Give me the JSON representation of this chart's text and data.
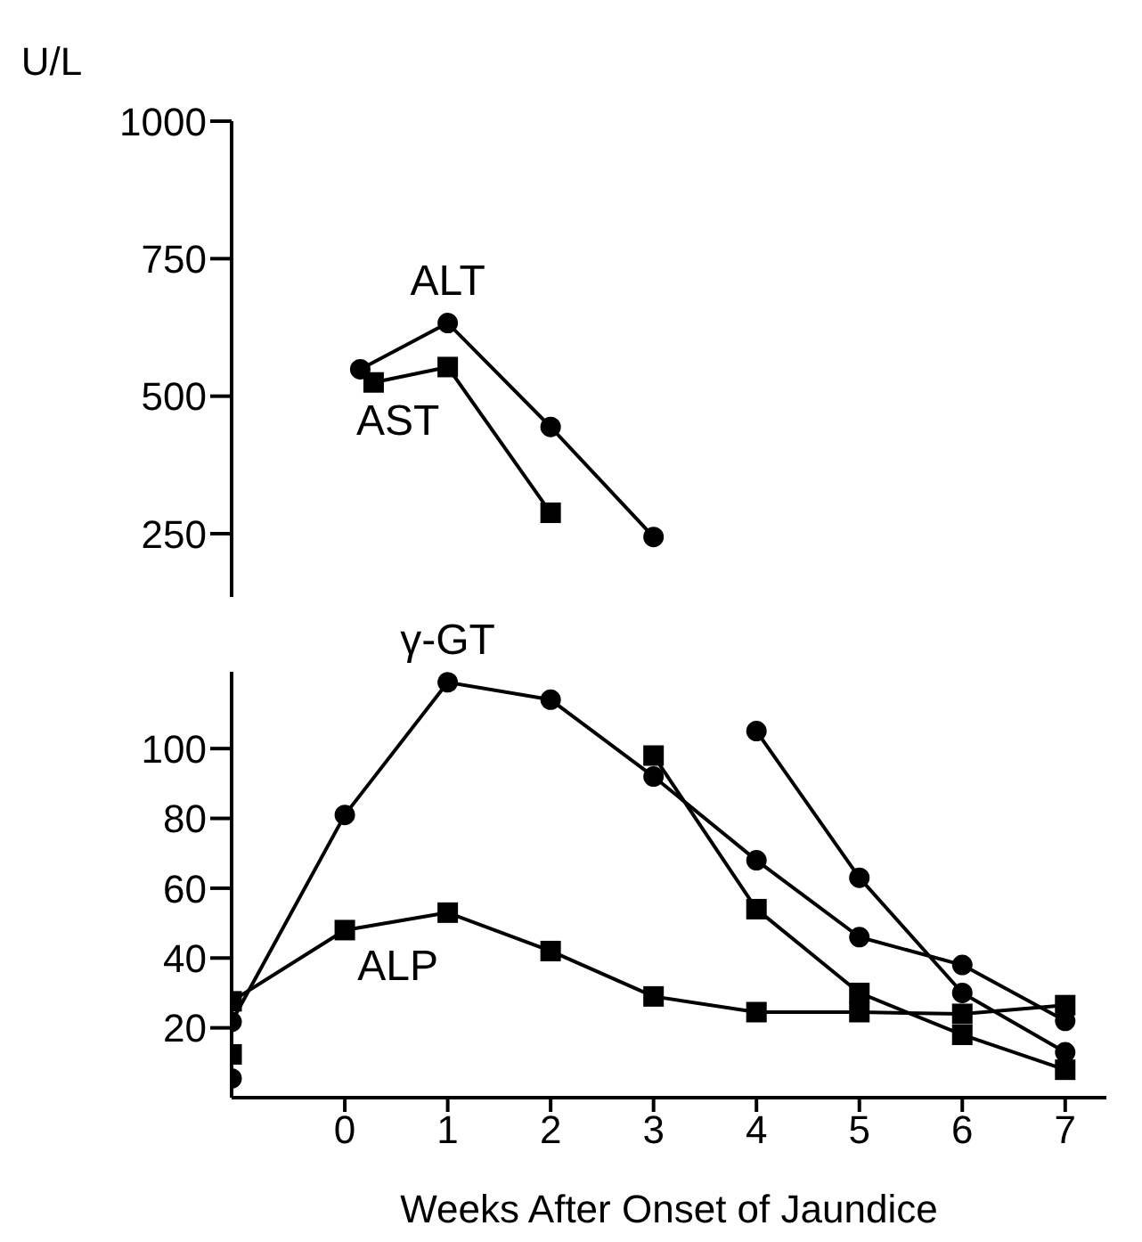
{
  "chart_data": [
    {
      "type": "line",
      "ylabel": "U/L",
      "xlim": [
        -1.1,
        7
      ],
      "xticks": [
        0,
        1,
        2,
        3,
        4,
        5,
        6,
        7
      ],
      "ylim": [
        135,
        1000
      ],
      "yticks": [
        250,
        500,
        750,
        1000
      ],
      "tick_labels": "y",
      "grid": false,
      "legend": false,
      "series": [
        {
          "name": "ALT",
          "color": "#000000",
          "marker": "circle",
          "x": [
            0.15,
            1,
            2,
            3
          ],
          "values": [
            549,
            633,
            444,
            244
          ]
        },
        {
          "name": "AST",
          "color": "#000000",
          "marker": "square",
          "x": [
            0.28,
            1,
            2
          ],
          "values": [
            525,
            553,
            288
          ]
        }
      ]
    },
    {
      "type": "line",
      "xlabel": "Weeks After Onset of Jaundice",
      "xlim": [
        -1.1,
        7.4
      ],
      "xticks": [
        0,
        1,
        2,
        3,
        4,
        5,
        6,
        7
      ],
      "ylim": [
        0,
        122
      ],
      "yticks": [
        20,
        40,
        60,
        80,
        100
      ],
      "grid": false,
      "legend": false,
      "series": [
        {
          "color": "#000000",
          "marker": "circle",
          "x": [
            -1.1,
            0.15,
            4,
            5,
            6,
            7
          ],
          "values": [
            5.5,
            null,
            105,
            63,
            30,
            13
          ]
        },
        {
          "color": "#000000",
          "marker": "square",
          "x": [
            -1.1,
            0.28,
            3,
            4,
            5,
            6,
            7
          ],
          "values": [
            12.4,
            null,
            98,
            54,
            30,
            18,
            8
          ]
        },
        {
          "name": "γ-GT",
          "color": "#000000",
          "marker": "circle",
          "x": [
            -1.1,
            0,
            1,
            2,
            3,
            4,
            5,
            6,
            7
          ],
          "values": [
            21.7,
            81,
            119,
            114,
            92,
            68,
            46,
            38,
            22
          ]
        },
        {
          "name": "ALP",
          "color": "#000000",
          "marker": "square",
          "x": [
            -1.1,
            0,
            1,
            2,
            3,
            4,
            5,
            6,
            7
          ],
          "values": [
            27.6,
            48,
            53,
            42,
            29,
            24.5,
            24.5,
            24,
            26.5
          ]
        }
      ]
    }
  ]
}
